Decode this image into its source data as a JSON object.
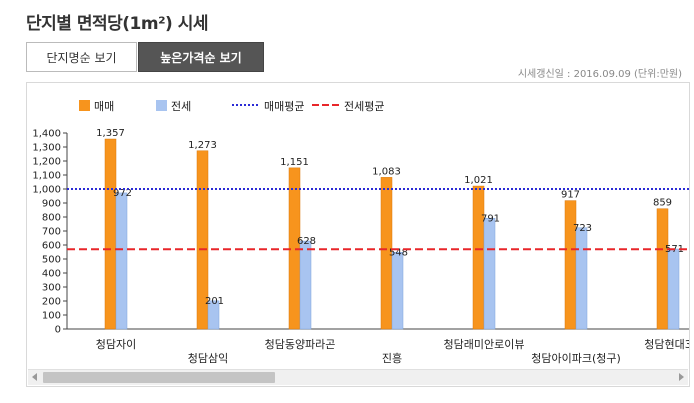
{
  "page": {
    "title": "단지별 면적당(1m²) 시세",
    "tabs": [
      {
        "label": "단지명순 보기",
        "active": false
      },
      {
        "label": "높은가격순 보기",
        "active": true
      }
    ],
    "update_note": "시세갱신일 : 2016.09.09 (단위:만원)"
  },
  "colors": {
    "sale_bar": "#f7941d",
    "jeonse_bar": "#a8c4f0",
    "sale_avg_line": "#2b2bd6",
    "jeonse_avg_line": "#e8262a"
  },
  "chart_data": {
    "type": "bar",
    "title": "",
    "xlabel": "",
    "ylabel": "",
    "ylim": [
      0,
      1400
    ],
    "yticks": [
      "0",
      "100",
      "200",
      "300",
      "400",
      "500",
      "600",
      "700",
      "800",
      "900",
      "1,000",
      "1,100",
      "1,200",
      "1,300",
      "1,400"
    ],
    "categories": [
      "청담자이",
      "청담삼익",
      "청담동양파라곤",
      "진흥",
      "청담래미안로이뷰",
      "청담아이파크(청구)",
      "청담현대3"
    ],
    "series": [
      {
        "name": "매매",
        "values": [
          1357,
          1273,
          1151,
          1083,
          1021,
          917,
          859
        ],
        "labels": [
          "1,357",
          "1,273",
          "1,151",
          "1,083",
          "1,021",
          "917",
          "859"
        ]
      },
      {
        "name": "전세",
        "values": [
          972,
          201,
          628,
          548,
          791,
          723,
          571
        ],
        "labels": [
          "972",
          "201",
          "628",
          "548",
          "791",
          "723",
          "571"
        ]
      }
    ],
    "reference_lines": [
      {
        "name": "매매평균",
        "value": 1000,
        "style": "dotted"
      },
      {
        "name": "전세평균",
        "value": 570,
        "style": "dashed"
      }
    ],
    "legend_position": "top-left",
    "grid": false
  }
}
